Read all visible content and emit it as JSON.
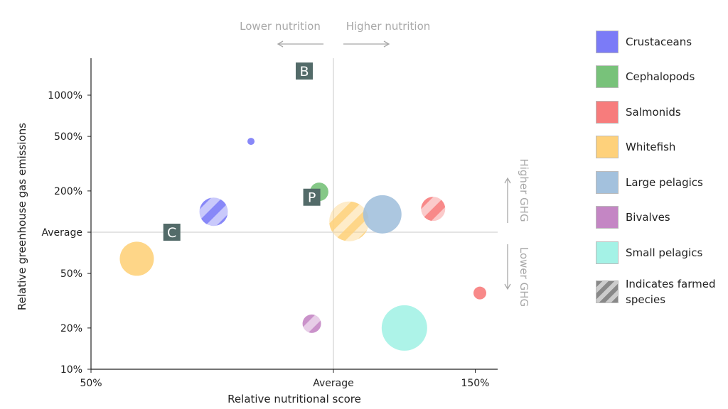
{
  "chart_data": {
    "type": "scatter",
    "subtype": "bubble",
    "xlabel": "Relative nutritional score",
    "ylabel": "Relative greenhouse gas emissions",
    "x_scale": "log",
    "y_scale": "log",
    "xlim": [
      50,
      160
    ],
    "ylim": [
      10,
      1600
    ],
    "x_ticks": [
      {
        "value": 50,
        "label": "50%"
      },
      {
        "value": 100,
        "label": "Average"
      },
      {
        "value": 150,
        "label": "150%"
      }
    ],
    "y_ticks": [
      {
        "value": 10,
        "label": "10%"
      },
      {
        "value": 20,
        "label": "20%"
      },
      {
        "value": 50,
        "label": "50%"
      },
      {
        "value": 100,
        "label": "Average"
      },
      {
        "value": 200,
        "label": "200%"
      },
      {
        "value": 500,
        "label": "500%"
      },
      {
        "value": 1000,
        "label": "1000%"
      }
    ],
    "reference_lines": {
      "x": 100,
      "y": 100
    },
    "grid": false,
    "legend_position": "right",
    "annotations": {
      "lower_nutrition": "Lower nutrition",
      "higher_nutrition": "Higher nutrition",
      "higher_ghg": "Higher GHG",
      "lower_ghg": "Lower GHG"
    },
    "markers": [
      {
        "label": "B",
        "x": 92,
        "y": 1500
      },
      {
        "label": "P",
        "x": 94,
        "y": 180
      },
      {
        "label": "C",
        "x": 63,
        "y": 100
      }
    ],
    "series": [
      {
        "name": "Crustaceans",
        "color": "#7b7bf7",
        "points": [
          {
            "x": 79,
            "y": 460,
            "size": 5,
            "farmed": false
          },
          {
            "x": 71,
            "y": 141,
            "size": 20,
            "farmed": true
          }
        ]
      },
      {
        "name": "Cephalopods",
        "color": "#78c27a",
        "points": [
          {
            "x": 96,
            "y": 197,
            "size": 13,
            "farmed": false
          }
        ]
      },
      {
        "name": "Salmonids",
        "color": "#f77c7c",
        "points": [
          {
            "x": 133,
            "y": 148,
            "size": 17,
            "farmed": true
          },
          {
            "x": 152,
            "y": 36,
            "size": 9,
            "farmed": false
          }
        ]
      },
      {
        "name": "Whitefish",
        "color": "#fed17b",
        "points": [
          {
            "x": 57,
            "y": 64,
            "size": 24,
            "farmed": false
          },
          {
            "x": 104.6,
            "y": 120,
            "size": 28,
            "farmed": true
          }
        ]
      },
      {
        "name": "Large pelagics",
        "color": "#a3c1dd",
        "points": [
          {
            "x": 115,
            "y": 135,
            "size": 27,
            "farmed": false
          }
        ]
      },
      {
        "name": "Bivalves",
        "color": "#c486c4",
        "points": [
          {
            "x": 94,
            "y": 21.5,
            "size": 13,
            "farmed": true
          }
        ]
      },
      {
        "name": "Small pelagics",
        "color": "#a4f2e6",
        "points": [
          {
            "x": 122.5,
            "y": 20,
            "size": 32,
            "farmed": false
          }
        ]
      }
    ],
    "farmed_legend": {
      "label": "Indicates farmed species",
      "color": "#888888"
    }
  }
}
